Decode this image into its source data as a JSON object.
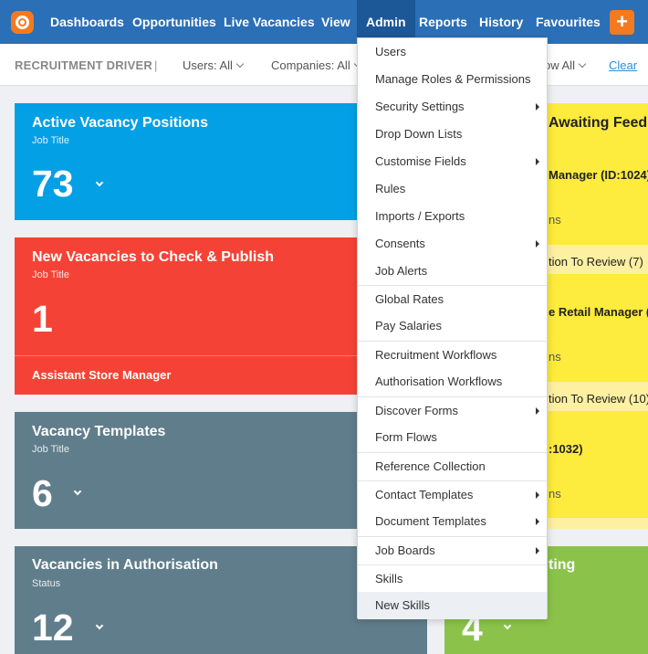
{
  "nav": {
    "items": [
      "Dashboards",
      "Opportunities",
      "Live Vacancies",
      "View",
      "Admin",
      "Reports",
      "History",
      "Favourites"
    ],
    "plus": "+"
  },
  "filters": {
    "title": "RECRUITMENT DRIVER",
    "users": "Users: All",
    "companies": "Companies: All",
    "show": "ow All",
    "clear": "Clear"
  },
  "cards": {
    "active": {
      "title": "Active Vacancy Positions",
      "sub": "Job Title",
      "value": "73",
      "color": "#04a0e6"
    },
    "new": {
      "title": "New Vacancies to Check & Publish",
      "sub": "Job Title",
      "value": "1",
      "footer": "Assistant Store Manager",
      "color": "#f44336"
    },
    "templates": {
      "title": "Vacancy Templates",
      "sub": "Job Title",
      "value": "6",
      "color": "#607d8b"
    },
    "auth": {
      "title": "Vacancies in Authorisation",
      "sub": "Status",
      "value": "12",
      "color": "#607d8b"
    }
  },
  "right_panel": {
    "title": "Awaiting Feedb",
    "lines": [
      "Manager (ID:1024)",
      "ns",
      "tion To Review (7)",
      "e Retail Manager (I",
      "ns",
      "tion To Review (10)",
      ":1032)",
      "ns"
    ],
    "green_title": "ting",
    "green_value": "4"
  },
  "admin_menu": [
    {
      "label": "Users",
      "submenu": false
    },
    {
      "label": "Manage Roles & Permissions",
      "submenu": false
    },
    {
      "label": "Security Settings",
      "submenu": true
    },
    {
      "label": "Drop Down Lists",
      "submenu": false
    },
    {
      "label": "Customise Fields",
      "submenu": true
    },
    {
      "label": "Rules",
      "submenu": false
    },
    {
      "label": "Imports / Exports",
      "submenu": false
    },
    {
      "label": "Consents",
      "submenu": true
    },
    {
      "label": "Job Alerts",
      "submenu": false
    },
    {
      "label": "Global Rates",
      "submenu": false
    },
    {
      "label": "Pay Salaries",
      "submenu": false
    },
    {
      "label": "Recruitment Workflows",
      "submenu": false
    },
    {
      "label": "Authorisation Workflows",
      "submenu": false
    },
    {
      "label": "Discover Forms",
      "submenu": true
    },
    {
      "label": "Form Flows",
      "submenu": false
    },
    {
      "label": "Reference Collection",
      "submenu": false
    },
    {
      "label": "Contact Templates",
      "submenu": true
    },
    {
      "label": "Document Templates",
      "submenu": true
    },
    {
      "label": "Job Boards",
      "submenu": true
    },
    {
      "label": "Skills",
      "submenu": false
    },
    {
      "label": "New Skills",
      "submenu": false
    }
  ]
}
